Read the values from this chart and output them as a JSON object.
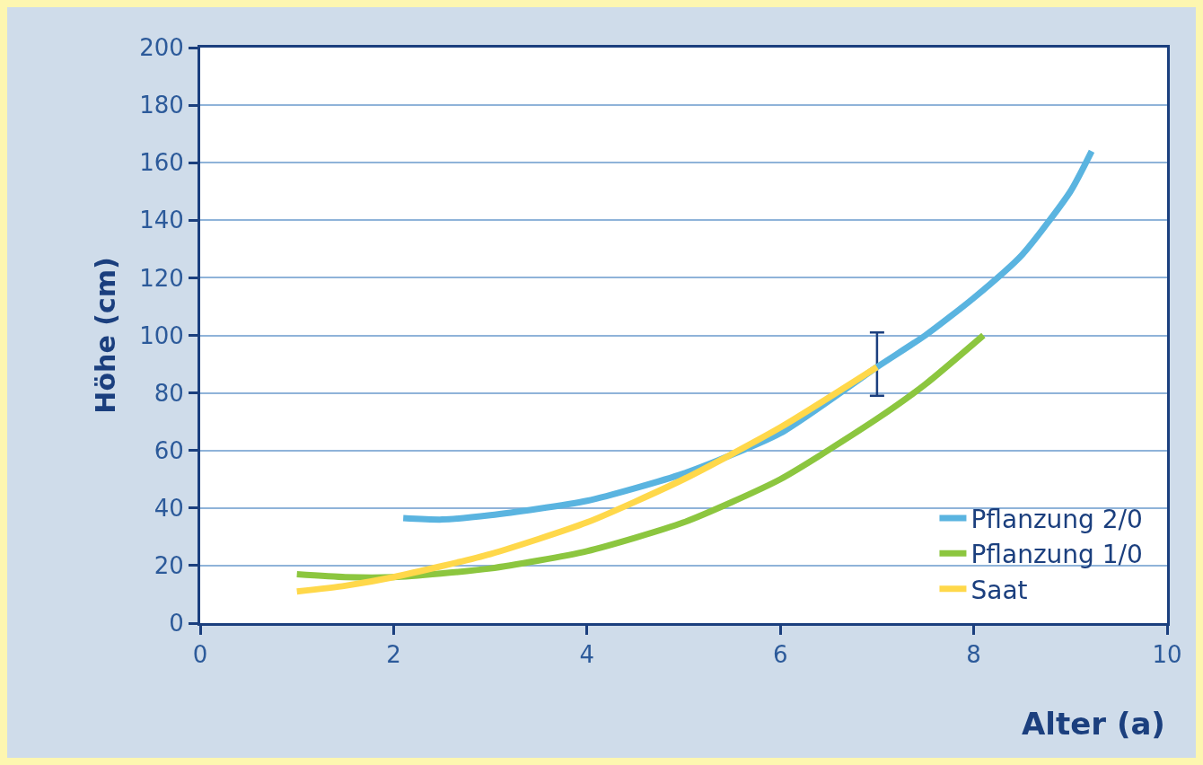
{
  "chart_data": {
    "type": "line",
    "xlabel": "Alter (a)",
    "ylabel": "Höhe (cm)",
    "xlim": [
      0,
      10
    ],
    "xticks": [
      0,
      2,
      4,
      6,
      8,
      10
    ],
    "ylim": [
      0,
      200
    ],
    "yticks": [
      0,
      20,
      40,
      60,
      80,
      100,
      120,
      140,
      160,
      180,
      200
    ],
    "grid": "y",
    "legend": "bottom right",
    "marker": "none",
    "line_style": "solid",
    "series": [
      {
        "name": "Pflanzung 2/0",
        "color": "#5ab4e0",
        "x": [
          2.1,
          2.5,
          3,
          4,
          5,
          6,
          7,
          7.5,
          8,
          8.5,
          9,
          9.22
        ],
        "values": [
          36.5,
          36,
          37.5,
          42.5,
          52,
          66,
          89,
          100,
          113,
          128,
          150,
          164
        ],
        "errors": [
          null,
          null,
          null,
          null,
          null,
          null,
          [
            79,
            101
          ],
          null,
          null,
          null,
          null,
          null
        ]
      },
      {
        "name": "Pflanzung 1/0",
        "color": "#8cc63f",
        "x": [
          1,
          1.5,
          2,
          3,
          4,
          5,
          6,
          7,
          7.5,
          8.1
        ],
        "values": [
          17,
          16,
          16,
          19,
          25,
          35,
          50,
          71,
          83,
          100
        ]
      },
      {
        "name": "Saat",
        "color": "#ffd84a",
        "x": [
          1,
          1.5,
          2,
          3,
          4,
          5,
          6,
          7
        ],
        "values": [
          11,
          13,
          16,
          24,
          35,
          50,
          68,
          89
        ]
      }
    ]
  }
}
